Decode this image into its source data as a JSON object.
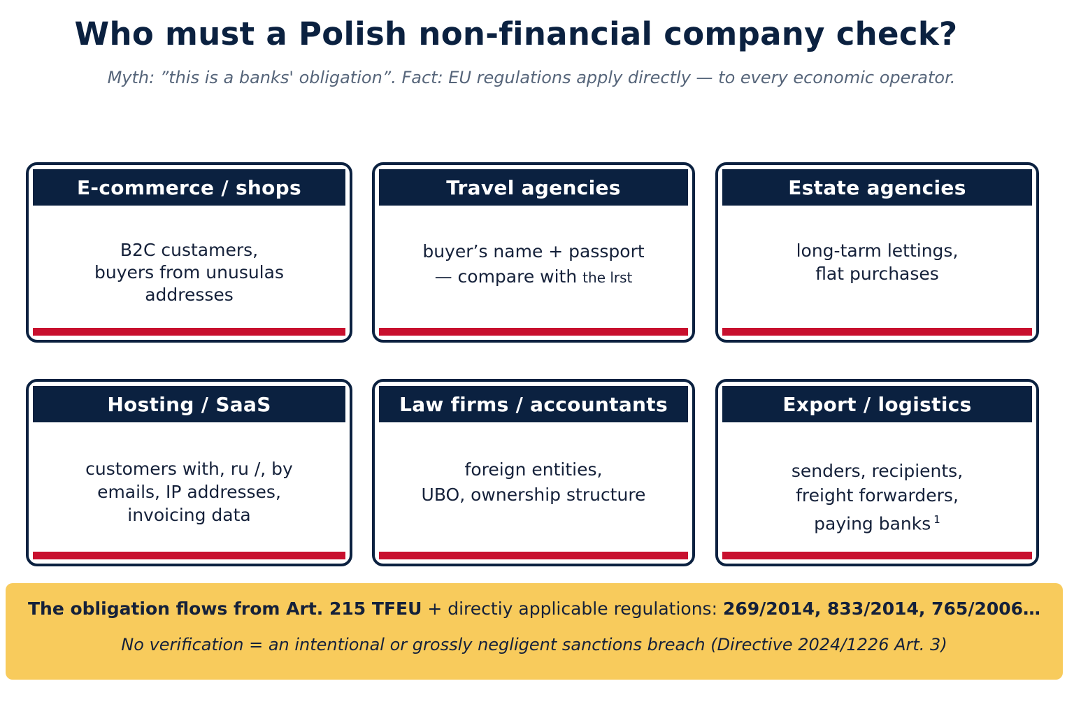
{
  "header": {
    "title": "Who must a Polish non-financial company check?",
    "subtitle": "Myth: ”this is a banks' obligation”. Fact: EU regulations apply directly — to every economic operator."
  },
  "cards": [
    {
      "title": "E-commerce / shops",
      "lines": [
        "B2C custamers,",
        "buyers from unusulas",
        "addresses"
      ]
    },
    {
      "title": "Travel agencies",
      "lines": [
        "buyer’s name + passport",
        "— compare with"
      ],
      "line2_small": "the lrst"
    },
    {
      "title": "Estate agencies",
      "lines": [
        "long-tarm lettings,",
        "flat purchases"
      ]
    },
    {
      "title": "Hosting / SaaS",
      "lines": [
        "customers with, ru /, by",
        "emails, IP addresses,",
        "invoicing data"
      ]
    },
    {
      "title": "Law firms / accountants",
      "lines": [
        "foreign entities,",
        "UBO, ownership structure"
      ]
    },
    {
      "title": "Export / logistics",
      "lines": [
        "senders, recipients,",
        "freight forwarders,",
        "paying banks"
      ],
      "footnote": "1"
    }
  ],
  "footer": {
    "line1_bold_start": "The obligation flows from Art. 215 TFEU",
    "line1_middle": " + directiy applicable regulations: ",
    "line1_bold_end": "269/2014, 833/2014, 765/2006…",
    "line2": "No verification = an intentional or grossly negligent sanctions breach (Directive 2024/1226 Art. 3)"
  },
  "colors": {
    "navy": "#0b2140",
    "red": "#c8102e",
    "footer_bg": "#f8cb5c"
  }
}
